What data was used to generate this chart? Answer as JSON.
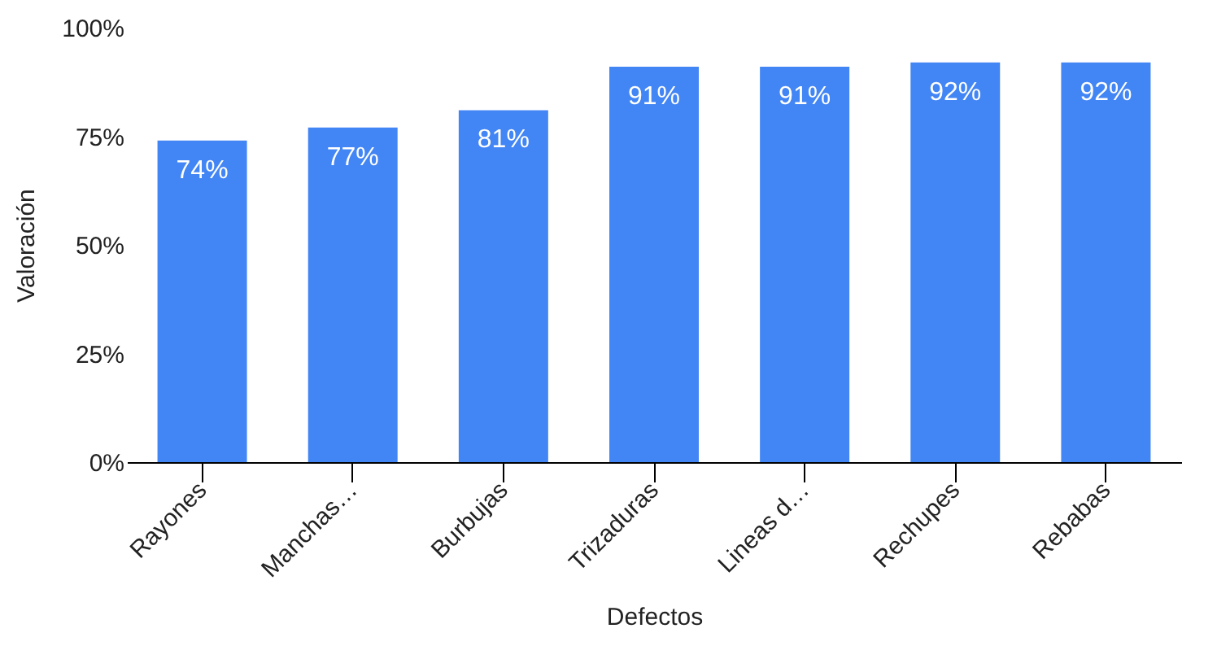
{
  "chart_data": {
    "type": "bar",
    "xlabel": "Defectos",
    "ylabel": "Valoración",
    "categories": [
      "Rayones",
      "Manchas…",
      "Burbujas",
      "Trizaduras",
      "Lineas d…",
      "Rechupes",
      "Rebabas"
    ],
    "values": [
      74,
      77,
      81,
      91,
      91,
      92,
      92
    ],
    "value_labels": [
      "74%",
      "77%",
      "81%",
      "91%",
      "91%",
      "92%",
      "92%"
    ],
    "color": "#4285f4",
    "ylim": [
      0,
      100
    ],
    "yticks": [
      {
        "value": 0,
        "label": "0%"
      },
      {
        "value": 25,
        "label": "25%"
      },
      {
        "value": 50,
        "label": "50%"
      },
      {
        "value": 75,
        "label": "75%"
      },
      {
        "value": 100,
        "label": "100%"
      }
    ],
    "grid": false
  }
}
